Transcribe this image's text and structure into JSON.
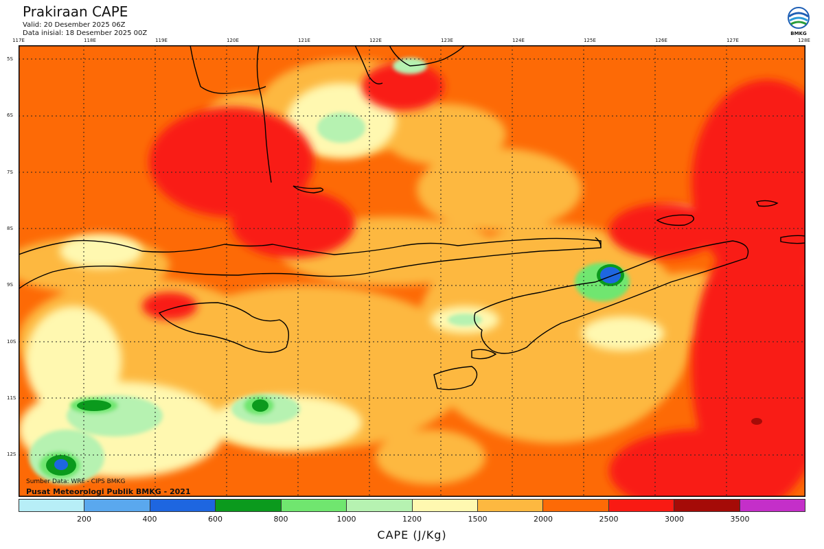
{
  "header": {
    "title": "Prakiraan CAPE",
    "valid": "Valid: 20 Desember 2025 06Z",
    "init": "Data inisial: 18 Desember 2025 00Z"
  },
  "logo": {
    "text": "BMKG"
  },
  "map": {
    "lon_labels": [
      "117E",
      "118E",
      "119E",
      "120E",
      "121E",
      "122E",
      "123E",
      "124E",
      "125E",
      "126E",
      "127E",
      "128E"
    ],
    "lat_labels": [
      "5S",
      "6S",
      "7S",
      "8S",
      "9S",
      "10S",
      "11S",
      "12S"
    ],
    "source_line1": "Sumber Data: WRF - CIPS BMKG",
    "source_line2": "Pusat Meteorologi Publik BMKG - 2021"
  },
  "legend": {
    "colors": [
      "#b7eef7",
      "#5aa8ee",
      "#1e66e0",
      "#0b9a1d",
      "#70e66f",
      "#b6f2b1",
      "#fff8b0",
      "#fdb840",
      "#fd6a06",
      "#f91a13",
      "#a50b07",
      "#c42fc9"
    ],
    "ticks": [
      "200",
      "400",
      "600",
      "800",
      "1000",
      "1200",
      "1500",
      "2000",
      "2500",
      "3000",
      "3500"
    ],
    "unit": "CAPE (J/Kg)"
  }
}
